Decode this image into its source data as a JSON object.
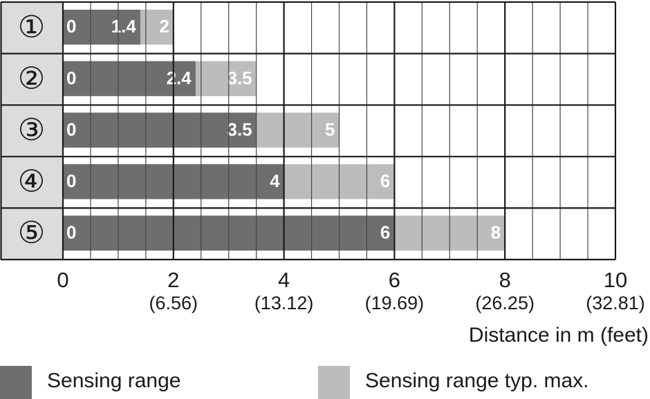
{
  "chart_data": {
    "type": "range-bar",
    "categories": [
      "①",
      "②",
      "③",
      "④",
      "⑤"
    ],
    "bar_starts": [
      0,
      0,
      0,
      0,
      0
    ],
    "series": [
      {
        "name": "Sensing range",
        "color": "#6e6e6e",
        "values": [
          1.4,
          2.4,
          3.5,
          4,
          6
        ]
      },
      {
        "name": "Sensing range typ. max.",
        "color": "#bcbcbc",
        "values": [
          2,
          3.5,
          5,
          6,
          8
        ]
      }
    ],
    "xlim": [
      0,
      10
    ],
    "xticks": [
      0,
      2,
      4,
      6,
      8,
      10
    ],
    "x2ticks": [
      {
        "value": 2,
        "label": "(6.56)"
      },
      {
        "value": 4,
        "label": "(13.12)"
      },
      {
        "value": 6,
        "label": "(19.69)"
      },
      {
        "value": 8,
        "label": "(26.25)"
      },
      {
        "value": 10,
        "label": "(32.81)"
      }
    ],
    "xminorticks": [
      0.5,
      1,
      1.5,
      2.5,
      3,
      3.5,
      4.5,
      5,
      5.5,
      6.5,
      7,
      7.5,
      8.5,
      9,
      9.5
    ],
    "xlabel": "Distance in m (feet)",
    "grid": true,
    "legend": "bottom"
  }
}
